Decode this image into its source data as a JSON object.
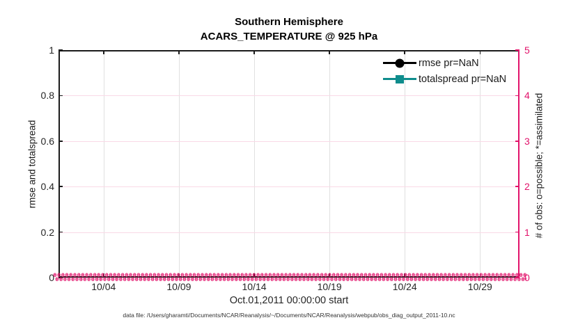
{
  "title": {
    "line1": "Southern Hemisphere",
    "line2": "ACARS_TEMPERATURE @ 925 hPa"
  },
  "axes": {
    "left": {
      "label": "rmse and totalspread",
      "ticks": [
        "1",
        "0.8",
        "0.6",
        "0.4",
        "0.2",
        "0"
      ],
      "color": "#1a1a1a"
    },
    "right": {
      "label": "# of obs: o=possible; *=assimilated",
      "ticks": [
        "5",
        "4",
        "3",
        "2",
        "1",
        "0"
      ],
      "color": "#e2136b"
    },
    "x": {
      "label": "Oct.01,2011 00:00:00 start",
      "ticks": [
        "10/04",
        "10/09",
        "10/14",
        "10/19",
        "10/24",
        "10/29"
      ]
    }
  },
  "legend": {
    "items": [
      {
        "label": "rmse pr=NaN",
        "color": "#000000",
        "marker": "circle"
      },
      {
        "label": "totalspread pr=NaN",
        "color": "#0e8c8c",
        "marker": "square"
      }
    ]
  },
  "obs_markers": {
    "possible_glyph": "o",
    "assimilated_glyph": "*",
    "cycles": 126,
    "value_possible": 0,
    "value_assimilated": 0,
    "color": "#e2136b"
  },
  "footer": "data file: /Users/gharamti/Documents/NCAR/Reanalysis/~/Documents/NCAR/Reanalysis/webpub/obs_diag_output_2011-10.nc",
  "colors": {
    "accent_pink": "#e2136b",
    "grid_pink": "#f9d9e6",
    "grid_gray": "#e0e0e0",
    "teal": "#0e8c8c",
    "black": "#1a1a1a"
  },
  "chart_data": {
    "type": "line",
    "title": "Southern Hemisphere",
    "subtitle": "ACARS_TEMPERATURE @ 925 hPa",
    "xlabel": "Oct.01,2011 00:00:00 start",
    "ylabel_left": "rmse and totalspread",
    "ylabel_right": "# of obs: o=possible; *=assimilated",
    "x_tick_labels": [
      "10/04",
      "10/09",
      "10/14",
      "10/19",
      "10/24",
      "10/29"
    ],
    "x_range_days": [
      "2011-10-01",
      "2011-10-31"
    ],
    "ylim_left": [
      0,
      1
    ],
    "ylim_right": [
      0,
      5
    ],
    "grid": true,
    "legend_position": "top-right-inside",
    "series": [
      {
        "name": "rmse pr=NaN",
        "axis": "left",
        "color": "#000000",
        "marker": "filled-circle",
        "values": "NaN - no curve drawn"
      },
      {
        "name": "totalspread pr=NaN",
        "axis": "left",
        "color": "#0e8c8c",
        "marker": "filled-square",
        "values": "NaN - no curve drawn"
      },
      {
        "name": "# of possible obs",
        "axis": "right",
        "color": "#e2136b",
        "marker": "o",
        "constant_value": 0
      },
      {
        "name": "# of assimilated obs",
        "axis": "right",
        "color": "#e2136b",
        "marker": "*",
        "constant_value": 0
      }
    ]
  }
}
